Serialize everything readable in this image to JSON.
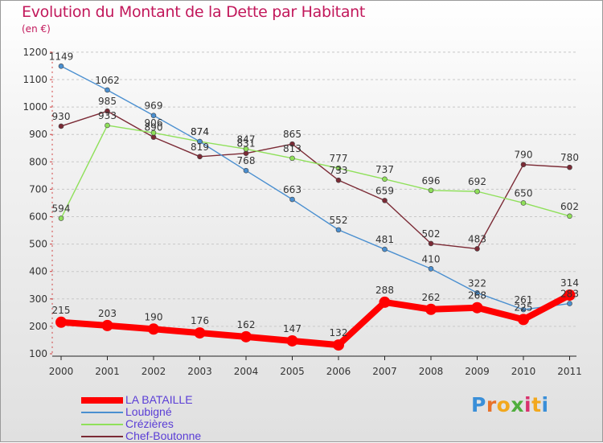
{
  "header": {
    "title": "Evolution du Montant de la Dette par Habitant",
    "unit": "(en €)"
  },
  "brand": {
    "letters": [
      "P",
      "r",
      "o",
      "x",
      "i",
      "t",
      "i"
    ],
    "colors": [
      "#3a8fd8",
      "#e8722a",
      "#f2a81d",
      "#4fae3d",
      "#d9326e",
      "#f2a81d",
      "#3a8fd8"
    ]
  },
  "chart_data": {
    "type": "line",
    "title": "Evolution du Montant de la Dette par Habitant",
    "ylabel": "(en €)",
    "xlabel": "",
    "ylim": [
      100,
      1200
    ],
    "yticks": [
      100,
      200,
      300,
      400,
      500,
      600,
      700,
      800,
      900,
      1000,
      1100,
      1200
    ],
    "x": [
      "2000",
      "2001",
      "2002",
      "2003",
      "2004",
      "2005",
      "2006",
      "2007",
      "2008",
      "2009",
      "2010",
      "2011"
    ],
    "grid": "horizontal dashed",
    "legend": "bottom-left",
    "series": [
      {
        "name": "Chef-Boutonne",
        "color": "#7b2a35",
        "values": [
          930,
          985,
          890,
          819,
          831,
          865,
          733,
          659,
          502,
          483,
          790,
          780
        ],
        "labels": [
          "930",
          "985",
          "890",
          "819",
          "831",
          "865",
          "733",
          "659",
          "502",
          "483",
          "790",
          "780"
        ]
      },
      {
        "name": "Crézières",
        "color": "#8fe05a",
        "values": [
          594,
          933,
          906,
          874,
          847,
          813,
          777,
          737,
          696,
          692,
          650,
          602
        ],
        "labels": [
          "594",
          "933",
          "906",
          "874",
          "847",
          "813",
          "777",
          "737",
          "696",
          "692",
          "650",
          "602"
        ]
      },
      {
        "name": "Loubigné",
        "color": "#4a8fd0",
        "values": [
          1149,
          1062,
          969,
          874,
          768,
          663,
          552,
          481,
          410,
          322,
          261,
          283
        ],
        "labels": [
          "1149",
          "1062",
          "969",
          "874",
          "768",
          "663",
          "552",
          "481",
          "410",
          "322",
          "261",
          "283"
        ]
      },
      {
        "name": "LA BATAILLE",
        "color": "#ff0000",
        "values": [
          215,
          203,
          190,
          176,
          162,
          147,
          132,
          288,
          262,
          268,
          225,
          314
        ],
        "labels": [
          "215",
          "203",
          "190",
          "176",
          "162",
          "147",
          "132",
          "288",
          "262",
          "268",
          "225",
          "314"
        ]
      }
    ]
  },
  "legend": [
    {
      "name": "LA BATAILLE",
      "color": "#ff0000",
      "thick": true
    },
    {
      "name": "Loubigné",
      "color": "#4a8fd0",
      "thick": false
    },
    {
      "name": "Crézières",
      "color": "#8fe05a",
      "thick": false
    },
    {
      "name": "Chef-Boutonne",
      "color": "#7b2a35",
      "thick": false
    }
  ]
}
